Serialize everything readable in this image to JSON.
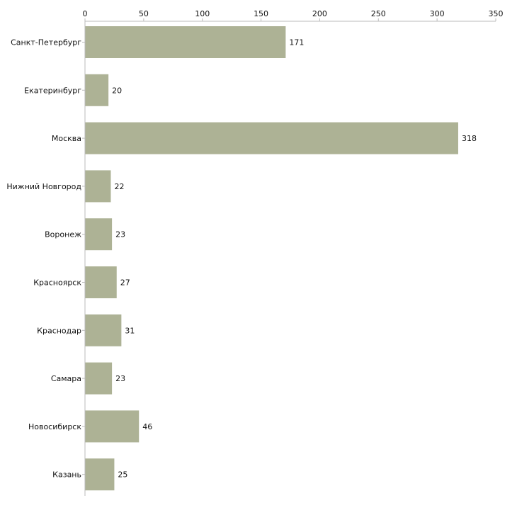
{
  "chart_data": {
    "type": "bar",
    "orientation": "horizontal",
    "title": "",
    "xlabel": "",
    "ylabel": "",
    "categories": [
      "Санкт-Петербург",
      "Екатеринбург",
      "Москва",
      "Нижний Новгород",
      "Воронеж",
      "Красноярск",
      "Краснодар",
      "Самара",
      "Новосибирск",
      "Казань"
    ],
    "values": [
      171,
      20,
      318,
      22,
      23,
      27,
      31,
      23,
      46,
      25
    ],
    "xlim": [
      0,
      350
    ],
    "xticks": [
      0,
      50,
      100,
      150,
      200,
      250,
      300,
      350
    ],
    "axis_position": "top",
    "grid": false,
    "legend": "none",
    "bar_color": "#adb295",
    "axis_color": "#bbbbbb"
  }
}
